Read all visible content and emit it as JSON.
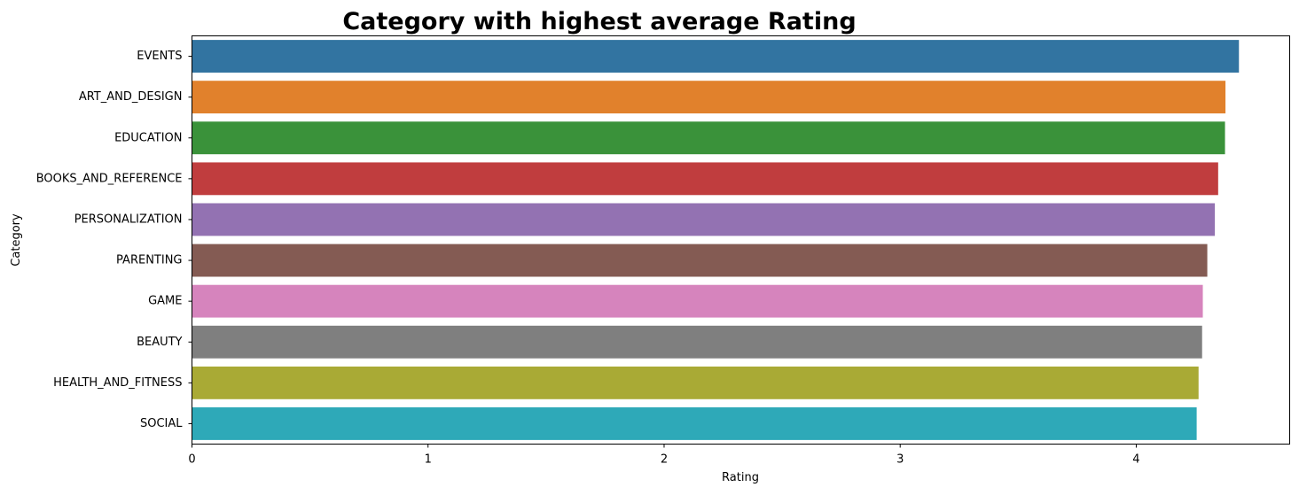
{
  "chart_data": {
    "type": "bar",
    "orientation": "horizontal",
    "title": "Category with highest average Rating",
    "xlabel": "Rating",
    "ylabel": "Category",
    "xlim": [
      0,
      4.65
    ],
    "xticks": [
      0,
      1,
      2,
      3,
      4
    ],
    "grid": false,
    "categories": [
      "EVENTS",
      "ART_AND_DESIGN",
      "EDUCATION",
      "BOOKS_AND_REFERENCE",
      "PERSONALIZATION",
      "PARENTING",
      "GAME",
      "BEAUTY",
      "HEALTH_AND_FITNESS",
      "SOCIAL"
    ],
    "values": [
      4.435,
      4.378,
      4.376,
      4.347,
      4.333,
      4.301,
      4.282,
      4.279,
      4.264,
      4.256
    ],
    "colors": [
      "#3274a1",
      "#e1812c",
      "#3a923a",
      "#c03d3e",
      "#9372b2",
      "#845b53",
      "#d684bd",
      "#7f7f7f",
      "#a9aa35",
      "#2ea9b8"
    ]
  }
}
